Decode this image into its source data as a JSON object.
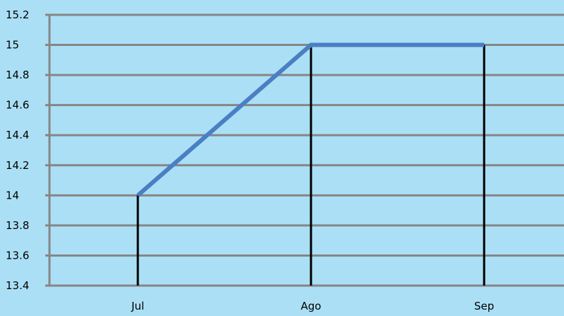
{
  "chart_data": {
    "type": "line",
    "title": "",
    "xlabel": "",
    "ylabel": "",
    "categories": [
      "Jul",
      "Ago",
      "Sep"
    ],
    "series": [
      {
        "values": [
          14,
          15,
          15
        ]
      }
    ],
    "ylim": [
      13.4,
      15.2
    ],
    "y_ticks": [
      "13.4",
      "13.6",
      "13.8",
      "14",
      "14.2",
      "14.4",
      "14.6",
      "14.8",
      "15",
      "15.2"
    ],
    "grid": true,
    "drop_lines": true,
    "legend": "none",
    "colors": {
      "background": "#abdff5",
      "gridline": "#868686",
      "line": "#4a7fc4",
      "drop_line": "#000000"
    }
  }
}
